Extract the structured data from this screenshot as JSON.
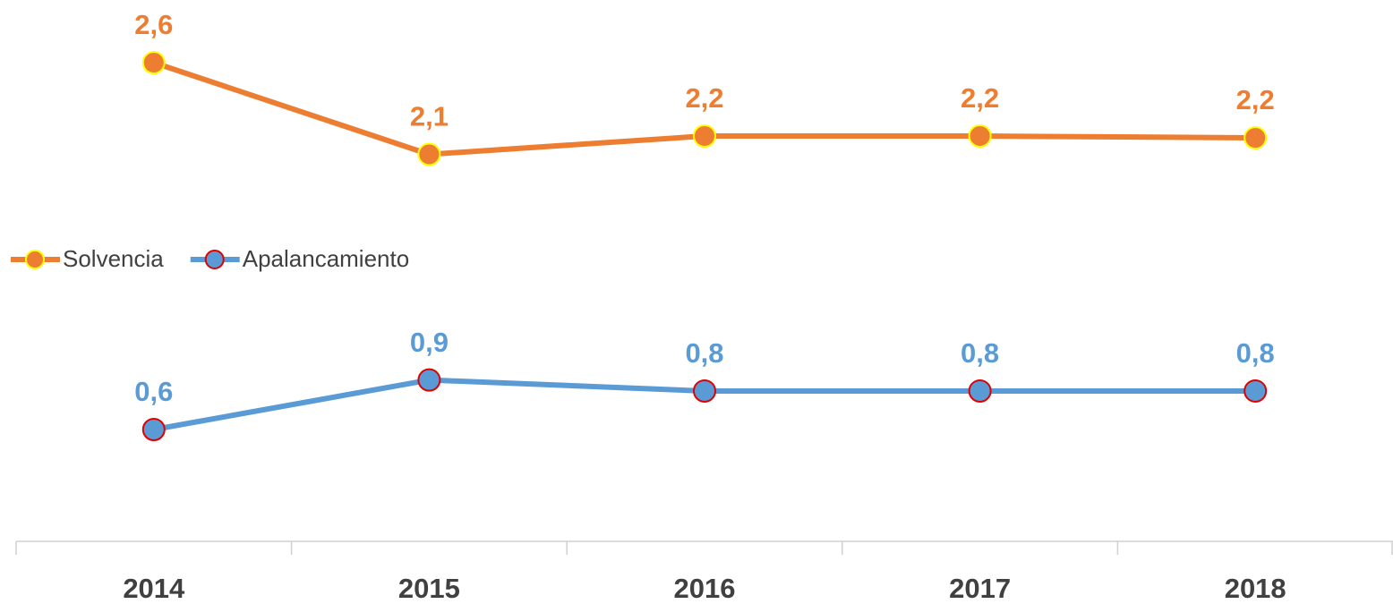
{
  "chart_data": {
    "type": "line",
    "categories": [
      "2014",
      "2015",
      "2016",
      "2017",
      "2018"
    ],
    "series": [
      {
        "name": "Solvencia",
        "color": "#ed7d31",
        "marker_edge": "#ffff00",
        "values": [
          2.6,
          2.1,
          2.2,
          2.2,
          2.19
        ],
        "value_labels": [
          "2,6",
          "2,1",
          "2,2",
          "2,2",
          "2,2"
        ]
      },
      {
        "name": "Apalancamiento",
        "color": "#5b9bd5",
        "marker_edge": "#e00000",
        "values": [
          0.6,
          0.87,
          0.81,
          0.81,
          0.81
        ],
        "value_labels": [
          "0,6",
          "0,9",
          "0,8",
          "0,8",
          "0,8"
        ]
      }
    ],
    "ylim": [
      0,
      3
    ],
    "grid": false
  }
}
